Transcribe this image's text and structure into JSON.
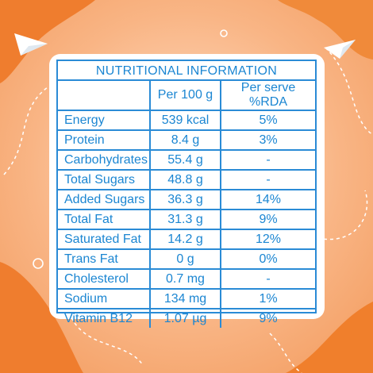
{
  "colors": {
    "background_light": "#fbc9a2",
    "background_orange": "#ef7d2e",
    "card": "#ffffff",
    "table_line": "#2a8bd6",
    "table_text": "#1b86d2"
  },
  "decorations": [
    "paper-plane-icon",
    "paper-plane-icon",
    "circle-icon",
    "circle-icon",
    "dashed-path"
  ],
  "table": {
    "title": "NUTRITIONAL INFORMATION",
    "headers": [
      "",
      "Per 100 g",
      "Per serve %RDA"
    ],
    "rows": [
      {
        "name": "Energy",
        "per100": "539 kcal",
        "rda": "5%"
      },
      {
        "name": "Protein",
        "per100": "8.4 g",
        "rda": "3%"
      },
      {
        "name": "Carbohydrates",
        "per100": "55.4 g",
        "rda": "-"
      },
      {
        "name": "Total Sugars",
        "per100": "48.8 g",
        "rda": "-"
      },
      {
        "name": "Added Sugars",
        "per100": "36.3 g",
        "rda": "14%"
      },
      {
        "name": "Total Fat",
        "per100": "31.3 g",
        "rda": "9%"
      },
      {
        "name": "Saturated Fat",
        "per100": "14.2 g",
        "rda": "12%"
      },
      {
        "name": "Trans Fat",
        "per100": "0 g",
        "rda": "0%"
      },
      {
        "name": "Cholesterol",
        "per100": "0.7 mg",
        "rda": "-"
      },
      {
        "name": "Sodium",
        "per100": "134 mg",
        "rda": "1%"
      },
      {
        "name": "Vitamin B12",
        "per100": "1.07 µg",
        "rda": "9%"
      }
    ]
  }
}
